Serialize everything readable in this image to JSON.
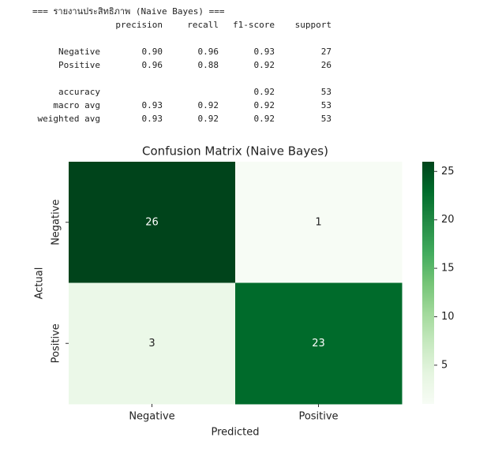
{
  "report": {
    "title": "=== รายงานประสิทธิภาพ (Naive Bayes) ===",
    "columns": [
      "precision",
      "recall",
      "f1-score",
      "support"
    ],
    "groups": [
      [
        {
          "label": "Negative",
          "precision": "0.90",
          "recall": "0.96",
          "f1-score": "0.93",
          "support": "27"
        },
        {
          "label": "Positive",
          "precision": "0.96",
          "recall": "0.88",
          "f1-score": "0.92",
          "support": "26"
        }
      ],
      [
        {
          "label": "accuracy",
          "f1-score": "0.92",
          "support": "53"
        },
        {
          "label": "macro avg",
          "precision": "0.93",
          "recall": "0.92",
          "f1-score": "0.92",
          "support": "53"
        },
        {
          "label": "weighted avg",
          "precision": "0.93",
          "recall": "0.92",
          "f1-score": "0.92",
          "support": "53"
        }
      ]
    ]
  },
  "chart_data": {
    "type": "heatmap",
    "title": "Confusion Matrix (Naive Bayes)",
    "x_label": "Predicted",
    "y_label": "Actual",
    "x_categories": [
      "Negative",
      "Positive"
    ],
    "y_categories": [
      "Negative",
      "Positive"
    ],
    "values": [
      [
        26,
        1
      ],
      [
        3,
        23
      ]
    ],
    "clim": [
      1,
      26
    ],
    "cticks": [
      5,
      10,
      15,
      20,
      25
    ],
    "colormap": [
      "#f7fcf5",
      "#e5f5e0",
      "#c7e9c0",
      "#a1d99b",
      "#74c476",
      "#41ab5d",
      "#238b45",
      "#006d2c",
      "#00441b"
    ]
  }
}
